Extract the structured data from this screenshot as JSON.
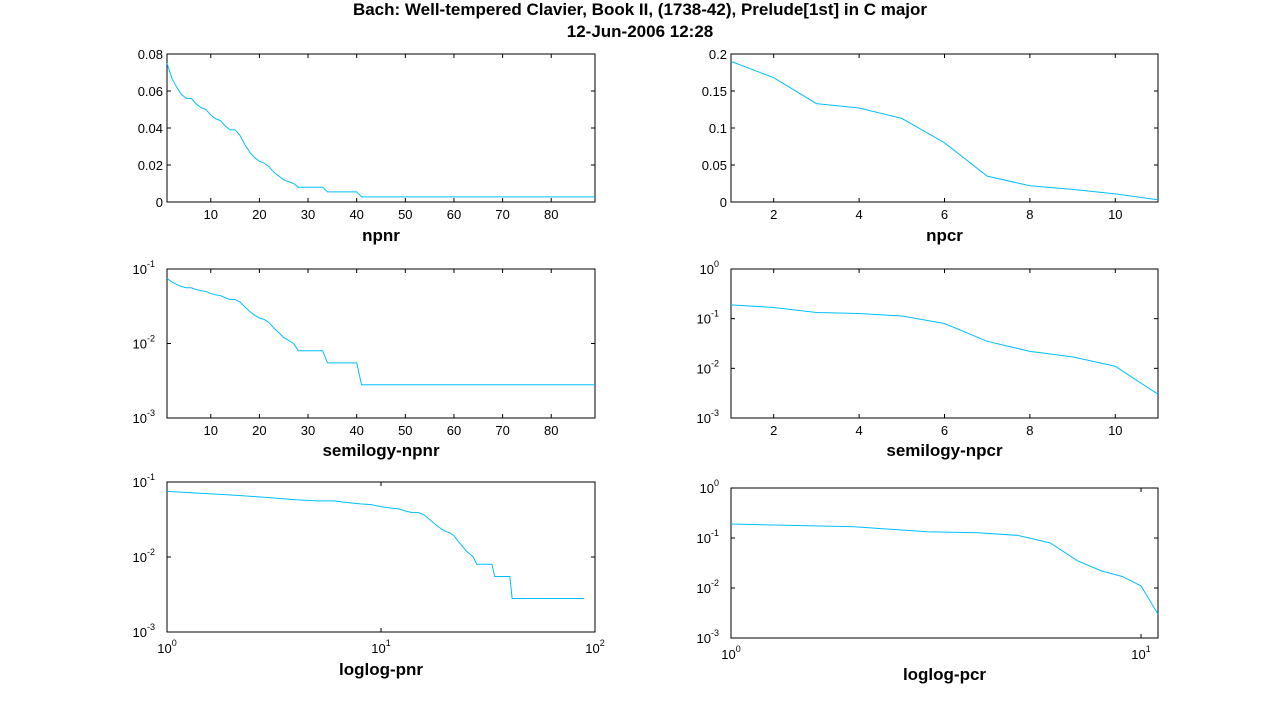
{
  "figure": {
    "title_line1": "Bach: Well-tempered Clavier, Book II, (1738-42), Prelude[1st] in C major",
    "title_line2": "12-Jun-2006 12:28"
  },
  "colors": {
    "line": "#00bfff",
    "axes": "#000000",
    "background": "#ffffff"
  },
  "chart_data": [
    {
      "id": "npnr",
      "type": "line",
      "xscale": "linear",
      "yscale": "linear",
      "xlabel": "npnr",
      "xlim": [
        1,
        89
      ],
      "ylim": [
        0,
        0.08
      ],
      "xticks": [
        10,
        20,
        30,
        40,
        50,
        60,
        70,
        80
      ],
      "xticklabels": [
        "10",
        "20",
        "30",
        "40",
        "50",
        "60",
        "70",
        "80"
      ],
      "yticks": [
        0,
        0.02,
        0.04,
        0.06,
        0.08
      ],
      "yticklabels": [
        "0",
        "0.02",
        "0.04",
        "0.06",
        "0.08"
      ],
      "series": [
        {
          "x": [
            1,
            2,
            3,
            4,
            5,
            6,
            7,
            8,
            9,
            10,
            11,
            12,
            13,
            14,
            15,
            16,
            17,
            18,
            19,
            20,
            21,
            22,
            23,
            24,
            25,
            26,
            27,
            28,
            29,
            30,
            33,
            34,
            40,
            41,
            89
          ],
          "y": [
            0.075,
            0.067,
            0.062,
            0.058,
            0.056,
            0.056,
            0.053,
            0.051,
            0.05,
            0.047,
            0.045,
            0.044,
            0.041,
            0.039,
            0.039,
            0.036,
            0.031,
            0.027,
            0.024,
            0.022,
            0.021,
            0.019,
            0.016,
            0.014,
            0.012,
            0.011,
            0.01,
            0.008,
            0.008,
            0.008,
            0.008,
            0.0055,
            0.0055,
            0.0028,
            0.0028
          ]
        }
      ]
    },
    {
      "id": "npcr",
      "type": "line",
      "xscale": "linear",
      "yscale": "linear",
      "xlabel": "npcr",
      "xlim": [
        1,
        11
      ],
      "ylim": [
        0,
        0.2
      ],
      "xticks": [
        2,
        4,
        6,
        8,
        10
      ],
      "xticklabels": [
        "2",
        "4",
        "6",
        "8",
        "10"
      ],
      "yticks": [
        0,
        0.05,
        0.1,
        0.15,
        0.2
      ],
      "yticklabels": [
        "0",
        "0.05",
        "0.1",
        "0.15",
        "0.2"
      ],
      "series": [
        {
          "x": [
            1,
            2,
            3,
            4,
            5,
            6,
            7,
            8,
            9,
            10,
            11
          ],
          "y": [
            0.19,
            0.168,
            0.133,
            0.127,
            0.113,
            0.08,
            0.035,
            0.022,
            0.017,
            0.011,
            0.003
          ]
        }
      ]
    },
    {
      "id": "semilogy-npnr",
      "type": "line",
      "xscale": "linear",
      "yscale": "log",
      "xlabel": "semilogy-npnr",
      "xlim": [
        1,
        89
      ],
      "ylim": [
        0.001,
        0.1
      ],
      "xticks": [
        10,
        20,
        30,
        40,
        50,
        60,
        70,
        80
      ],
      "xticklabels": [
        "10",
        "20",
        "30",
        "40",
        "50",
        "60",
        "70",
        "80"
      ],
      "yticks": [
        0.001,
        0.01,
        0.1
      ],
      "yticklabels": [
        [
          "10",
          "-3"
        ],
        [
          "10",
          "-2"
        ],
        [
          "10",
          "-1"
        ]
      ],
      "series": [
        {
          "x": [
            1,
            2,
            3,
            4,
            5,
            6,
            7,
            8,
            9,
            10,
            11,
            12,
            13,
            14,
            15,
            16,
            17,
            18,
            19,
            20,
            21,
            22,
            23,
            24,
            25,
            26,
            27,
            28,
            29,
            30,
            33,
            34,
            40,
            41,
            89
          ],
          "y": [
            0.075,
            0.067,
            0.062,
            0.058,
            0.056,
            0.056,
            0.053,
            0.051,
            0.05,
            0.047,
            0.045,
            0.044,
            0.041,
            0.039,
            0.039,
            0.036,
            0.031,
            0.027,
            0.024,
            0.022,
            0.021,
            0.019,
            0.016,
            0.014,
            0.012,
            0.011,
            0.01,
            0.008,
            0.008,
            0.008,
            0.008,
            0.0055,
            0.0055,
            0.0028,
            0.0028
          ]
        }
      ]
    },
    {
      "id": "semilogy-npcr",
      "type": "line",
      "xscale": "linear",
      "yscale": "log",
      "xlabel": "semilogy-npcr",
      "xlim": [
        1,
        11
      ],
      "ylim": [
        0.001,
        1
      ],
      "xticks": [
        2,
        4,
        6,
        8,
        10
      ],
      "xticklabels": [
        "2",
        "4",
        "6",
        "8",
        "10"
      ],
      "yticks": [
        0.001,
        0.01,
        0.1,
        1
      ],
      "yticklabels": [
        [
          "10",
          "-3"
        ],
        [
          "10",
          "-2"
        ],
        [
          "10",
          "-1"
        ],
        [
          "10",
          "0"
        ]
      ],
      "series": [
        {
          "x": [
            1,
            2,
            3,
            4,
            5,
            6,
            7,
            8,
            9,
            10,
            11
          ],
          "y": [
            0.19,
            0.168,
            0.133,
            0.127,
            0.113,
            0.08,
            0.035,
            0.022,
            0.017,
            0.011,
            0.003
          ]
        }
      ]
    },
    {
      "id": "loglog-pnr",
      "type": "line",
      "xscale": "log",
      "yscale": "log",
      "xlabel": "loglog-pnr",
      "xlim": [
        1,
        100
      ],
      "ylim": [
        0.001,
        0.1
      ],
      "xticks": [
        1,
        10,
        100
      ],
      "xticklabels": [
        [
          "10",
          "0"
        ],
        [
          "10",
          "1"
        ],
        [
          "10",
          "2"
        ]
      ],
      "yticks": [
        0.001,
        0.01,
        0.1
      ],
      "yticklabels": [
        [
          "10",
          "-3"
        ],
        [
          "10",
          "-2"
        ],
        [
          "10",
          "-1"
        ]
      ],
      "series": [
        {
          "x": [
            1,
            2,
            3,
            4,
            5,
            6,
            7,
            8,
            9,
            10,
            11,
            12,
            13,
            14,
            15,
            16,
            17,
            18,
            19,
            20,
            21,
            22,
            23,
            24,
            25,
            26,
            27,
            28,
            29,
            30,
            33,
            34,
            40,
            41,
            89
          ],
          "y": [
            0.075,
            0.067,
            0.062,
            0.058,
            0.056,
            0.056,
            0.053,
            0.051,
            0.05,
            0.047,
            0.045,
            0.044,
            0.041,
            0.039,
            0.039,
            0.036,
            0.031,
            0.027,
            0.024,
            0.022,
            0.021,
            0.019,
            0.016,
            0.014,
            0.012,
            0.011,
            0.01,
            0.008,
            0.008,
            0.008,
            0.008,
            0.0055,
            0.0055,
            0.0028,
            0.0028
          ]
        }
      ]
    },
    {
      "id": "loglog-pcr",
      "type": "line",
      "xscale": "log",
      "yscale": "log",
      "xlabel": "loglog-pcr",
      "xlim": [
        1,
        11
      ],
      "ylim": [
        0.001,
        1
      ],
      "xticks": [
        1,
        10
      ],
      "xticklabels": [
        [
          "10",
          "0"
        ],
        [
          "10",
          "1"
        ]
      ],
      "yticks": [
        0.001,
        0.01,
        0.1,
        1
      ],
      "yticklabels": [
        [
          "10",
          "-3"
        ],
        [
          "10",
          "-2"
        ],
        [
          "10",
          "-1"
        ],
        [
          "10",
          "0"
        ]
      ],
      "series": [
        {
          "x": [
            1,
            2,
            3,
            4,
            5,
            6,
            7,
            8,
            9,
            10,
            11
          ],
          "y": [
            0.19,
            0.168,
            0.133,
            0.127,
            0.113,
            0.08,
            0.035,
            0.022,
            0.017,
            0.011,
            0.003
          ]
        }
      ]
    }
  ]
}
